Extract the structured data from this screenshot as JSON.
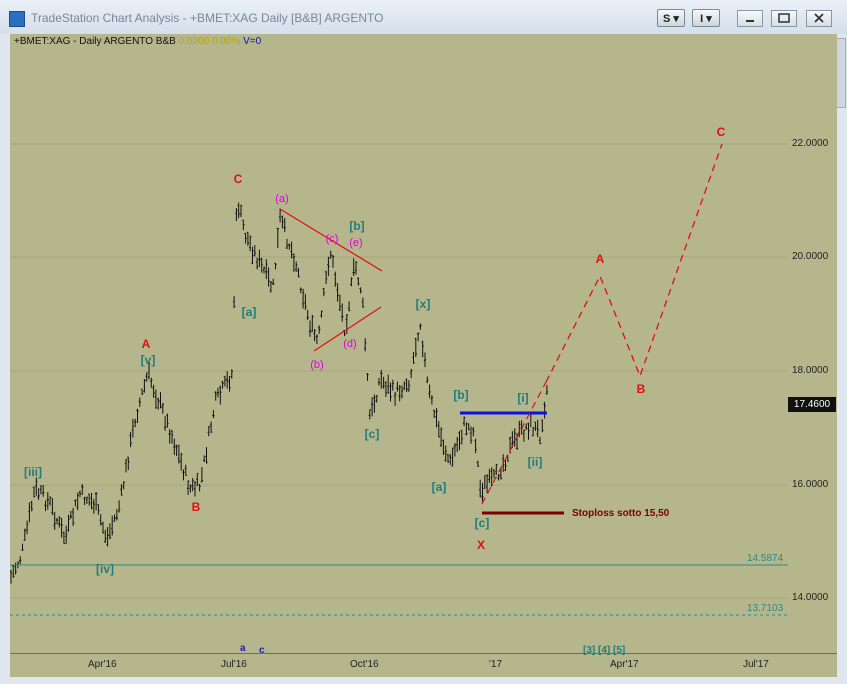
{
  "window": {
    "title": "TradeStation Chart Analysis - +BMET:XAG Daily [B&B] ARGENTO",
    "btn_s": "S ▾",
    "btn_i": "I ▾"
  },
  "header": {
    "symbol": "+BMET:XAG - Daily  ARGENTO  B&B",
    "change": "0.0000",
    "pct": "0.00%",
    "vol": "V=0"
  },
  "price_axis": {
    "ticks": [
      "22.0000",
      "20.0000",
      "18.0000",
      "16.0000",
      "14.0000"
    ],
    "last": "17.4600"
  },
  "time_axis": {
    "ticks": [
      "Apr'16",
      "Jul'16",
      "Oct'16",
      "'17",
      "Apr'17",
      "Jul'17"
    ]
  },
  "reference_lines": {
    "upper": "14.5874",
    "lower": "13.7103"
  },
  "annotations": {
    "iii": "[iii]",
    "iv": "[iv]",
    "v": "[v]",
    "A1": "A",
    "B1": "B",
    "C1": "C",
    "a1": "[a]",
    "c1": "[c]",
    "b1": "[b]",
    "pa": "(a)",
    "pb": "(b)",
    "pc": "(c)",
    "pd": "(d)",
    "pe": "(e)",
    "x1": "[x]",
    "a2": "[a]",
    "b2": "[b]",
    "c2": "[c]",
    "X": "X",
    "i1": "[i]",
    "ii1": "[ii]",
    "A2": "A",
    "B2": "B",
    "C2": "C",
    "stoploss": "Stoploss  sotto 15,50",
    "bottom_a": "a",
    "bottom_c": "c",
    "bottom_345": "[3] [4] [5]"
  },
  "colors": {
    "chart_bg": "#b5b68b",
    "wave_teal": "#1f7d7d",
    "wave_red": "#e01010",
    "wave_magenta": "#e000e0",
    "resistance_blue": "#1010e0",
    "stoploss_darkred": "#7a0000"
  }
}
